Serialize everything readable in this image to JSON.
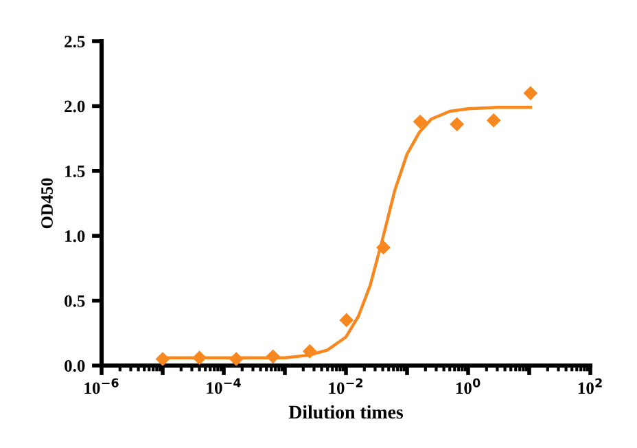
{
  "chart_data": {
    "type": "scatter",
    "xlabel": "Dilution times",
    "ylabel": "OD450",
    "log": "x",
    "xlim": [
      1e-06,
      100
    ],
    "xticks": [
      {
        "value": 1e-06,
        "label": "10$^{−6}$"
      },
      {
        "value": 1e-05,
        "label": null
      },
      {
        "value": 0.0001,
        "label": "10$^{−4}$"
      },
      {
        "value": 0.001,
        "label": null
      },
      {
        "value": 0.01,
        "label": "10$^{−2}$"
      },
      {
        "value": 0.1,
        "label": null
      },
      {
        "value": 1,
        "label": "10$^{0}$"
      },
      {
        "value": 10,
        "label": null
      },
      {
        "value": 100,
        "label": "10$^{2}$"
      }
    ],
    "ylim": [
      0,
      2.5
    ],
    "yticks": [
      {
        "value": 0,
        "label": "0.0"
      },
      0.5,
      {
        "value": 1,
        "label": "1.0"
      },
      1.5,
      {
        "value": 2,
        "label": "2.0"
      },
      2.5
    ],
    "grid": false,
    "marker": "diamond",
    "series": [
      {
        "color": "#f7871f",
        "x": [
          1e-05,
          4e-05,
          0.00016,
          0.00064,
          0.00256,
          0.0102,
          0.041,
          0.164,
          0.655,
          2.62,
          10.5
        ],
        "values": [
          0.05,
          0.06,
          0.05,
          0.07,
          0.11,
          0.35,
          0.91,
          1.88,
          1.86,
          1.89,
          2.1
        ]
      },
      {
        "type": "line",
        "color": "#f7871f",
        "marker": "none",
        "x": [
          1e-05,
          0.0001,
          0.001,
          0.0025,
          0.005,
          0.01,
          0.016,
          0.025,
          0.04,
          0.063,
          0.1,
          0.16,
          0.25,
          0.5,
          1,
          3,
          10.5
        ],
        "values": [
          0.06,
          0.06,
          0.06,
          0.08,
          0.12,
          0.22,
          0.38,
          0.62,
          0.98,
          1.35,
          1.63,
          1.8,
          1.9,
          1.96,
          1.98,
          1.99,
          1.99
        ]
      }
    ]
  }
}
